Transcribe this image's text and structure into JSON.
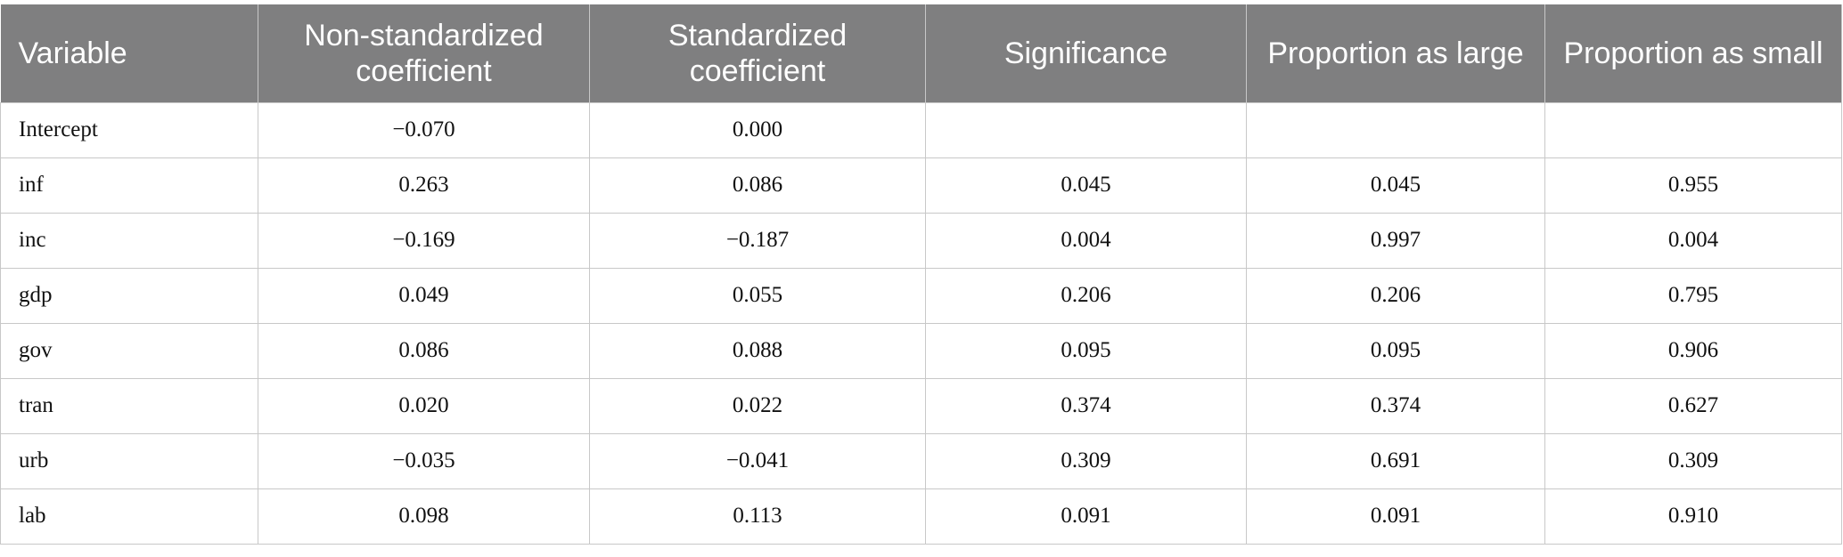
{
  "table": {
    "header": [
      "Variable",
      "Non-standardized coefficient",
      "Standardized coefficient",
      "Significance",
      "Proportion as large",
      "Proportion as small"
    ],
    "rows": [
      [
        "Intercept",
        "−0.070",
        "0.000",
        null,
        null,
        null
      ],
      [
        "inf",
        "0.263",
        "0.086",
        "0.045",
        "0.045",
        "0.955"
      ],
      [
        "inc",
        "−0.169",
        "−0.187",
        "0.004",
        "0.997",
        "0.004"
      ],
      [
        "gdp",
        "0.049",
        "0.055",
        "0.206",
        "0.206",
        "0.795"
      ],
      [
        "gov",
        "0.086",
        "0.088",
        "0.095",
        "0.095",
        "0.906"
      ],
      [
        "tran",
        "0.020",
        "0.022",
        "0.374",
        "0.374",
        "0.627"
      ],
      [
        "urb",
        "−0.035",
        "−0.041",
        "0.309",
        "0.691",
        "0.309"
      ],
      [
        "lab",
        "0.098",
        "0.113",
        "0.091",
        "0.091",
        "0.910"
      ]
    ]
  }
}
